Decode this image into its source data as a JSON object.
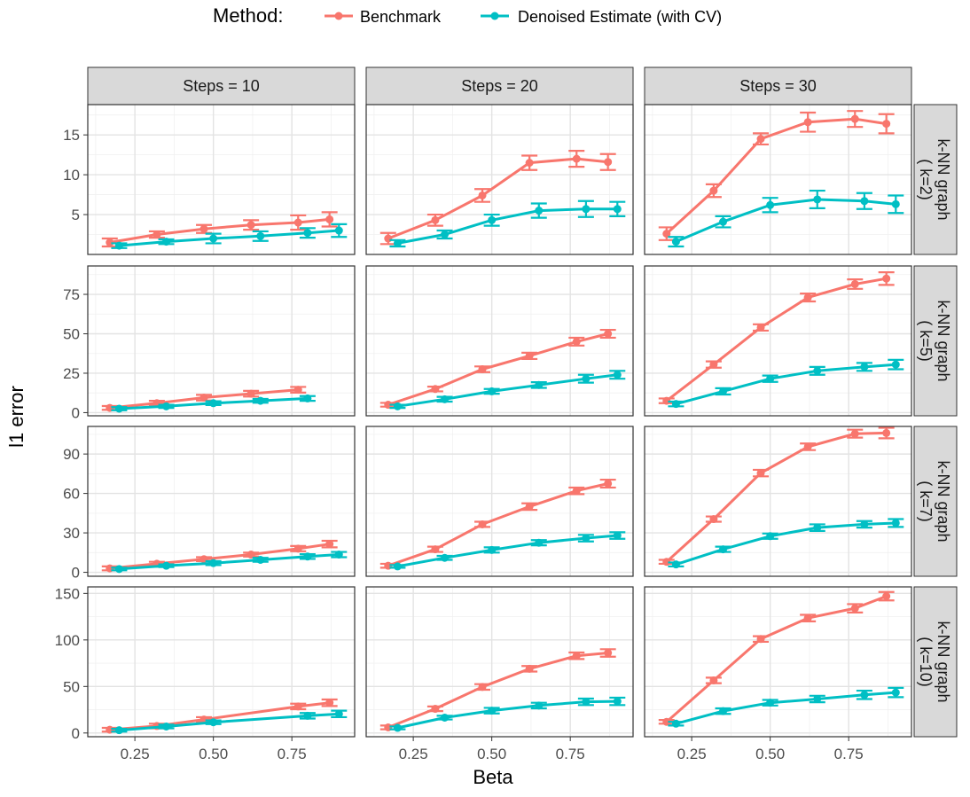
{
  "chart_data": {
    "type": "line",
    "legend": {
      "title": "Method:",
      "position": "top"
    },
    "xlabel": "Beta",
    "ylabel": "l1 error",
    "x_ticks": [
      0.25,
      0.5,
      0.75
    ],
    "x_tick_labels": [
      "0.25",
      "0.50",
      "0.75"
    ],
    "xlim": [
      0.1,
      0.95
    ],
    "columns": [
      "Steps = 10",
      "Steps = 20",
      "Steps = 30"
    ],
    "rows": [
      {
        "label": "k-NN graph\n( k=2)",
        "ylim": [
          0,
          18.8
        ],
        "ticks": [
          5,
          10,
          15
        ]
      },
      {
        "label": "k-NN graph\n( k=5)",
        "ylim": [
          -2,
          93
        ],
        "ticks": [
          0,
          25,
          50,
          75
        ]
      },
      {
        "label": "k-NN graph\n( k=7)",
        "ylim": [
          -3,
          111
        ],
        "ticks": [
          0,
          30,
          60,
          90
        ]
      },
      {
        "label": "k-NN graph\n( k=10)",
        "ylim": [
          -4,
          157
        ],
        "ticks": [
          0,
          50,
          100,
          150
        ]
      }
    ],
    "series": [
      {
        "name": "Benchmark",
        "color": "#F8766D"
      },
      {
        "name": "Denoised Estimate (with CV)",
        "color": "#00BFC4"
      }
    ],
    "panels": [
      {
        "row": 0,
        "col": 0,
        "series": [
          {
            "x": [
              0.17,
              0.32,
              0.47,
              0.62,
              0.77,
              0.87
            ],
            "y": [
              1.5,
              2.5,
              3.2,
              3.7,
              4.0,
              4.4
            ],
            "err": [
              0.5,
              0.4,
              0.5,
              0.6,
              0.9,
              0.9
            ]
          },
          {
            "x": [
              0.2,
              0.35,
              0.5,
              0.65,
              0.8,
              0.9
            ],
            "y": [
              1.1,
              1.6,
              2.0,
              2.3,
              2.7,
              3.0
            ],
            "err": [
              0.3,
              0.3,
              0.6,
              0.6,
              0.6,
              0.8
            ]
          }
        ]
      },
      {
        "row": 0,
        "col": 1,
        "series": [
          {
            "x": [
              0.17,
              0.32,
              0.47,
              0.62,
              0.77,
              0.87
            ],
            "y": [
              2.0,
              4.3,
              7.4,
              11.5,
              12.0,
              11.6
            ],
            "err": [
              0.7,
              0.7,
              0.8,
              0.9,
              1.0,
              1.0
            ]
          },
          {
            "x": [
              0.2,
              0.35,
              0.5,
              0.65,
              0.8,
              0.9
            ],
            "y": [
              1.4,
              2.5,
              4.3,
              5.5,
              5.7,
              5.7
            ],
            "err": [
              0.4,
              0.5,
              0.7,
              0.9,
              1.0,
              0.9
            ]
          }
        ]
      },
      {
        "row": 0,
        "col": 2,
        "series": [
          {
            "x": [
              0.17,
              0.32,
              0.47,
              0.62,
              0.77,
              0.87
            ],
            "y": [
              2.6,
              8.0,
              14.5,
              16.6,
              17.0,
              16.4
            ],
            "err": [
              0.8,
              0.8,
              0.7,
              1.2,
              1.0,
              1.2
            ]
          },
          {
            "x": [
              0.2,
              0.35,
              0.5,
              0.65,
              0.8,
              0.9
            ],
            "y": [
              1.6,
              4.1,
              6.2,
              6.9,
              6.7,
              6.3
            ],
            "err": [
              0.6,
              0.7,
              0.9,
              1.1,
              1.0,
              1.1
            ]
          }
        ]
      },
      {
        "row": 1,
        "col": 0,
        "series": [
          {
            "x": [
              0.17,
              0.32,
              0.47,
              0.62,
              0.77
            ],
            "y": [
              3.0,
              6.0,
              9.5,
              12.0,
              14.5
            ],
            "err": [
              1.2,
              1.5,
              1.8,
              1.8,
              1.8
            ]
          },
          {
            "x": [
              0.2,
              0.35,
              0.5,
              0.65,
              0.8
            ],
            "y": [
              2.5,
              4.0,
              6.0,
              7.5,
              9.0
            ],
            "err": [
              1.0,
              1.0,
              1.2,
              1.2,
              1.5
            ]
          }
        ]
      },
      {
        "row": 1,
        "col": 1,
        "series": [
          {
            "x": [
              0.17,
              0.32,
              0.47,
              0.62,
              0.77,
              0.87
            ],
            "y": [
              5.0,
              15.0,
              27.5,
              36.0,
              45.0,
              50.0
            ],
            "err": [
              1.2,
              1.5,
              1.8,
              2.0,
              2.5,
              2.5
            ]
          },
          {
            "x": [
              0.2,
              0.35,
              0.5,
              0.65,
              0.8,
              0.9
            ],
            "y": [
              4.0,
              8.5,
              13.5,
              17.5,
              21.5,
              24.0
            ],
            "err": [
              1.0,
              1.5,
              1.5,
              1.8,
              2.5,
              2.5
            ]
          }
        ]
      },
      {
        "row": 1,
        "col": 2,
        "series": [
          {
            "x": [
              0.17,
              0.32,
              0.47,
              0.62,
              0.77,
              0.87
            ],
            "y": [
              7.5,
              30.5,
              54.0,
              73.0,
              81.5,
              85.0
            ],
            "err": [
              1.5,
              2.0,
              2.0,
              2.5,
              3.0,
              4.0
            ]
          },
          {
            "x": [
              0.2,
              0.35,
              0.5,
              0.65,
              0.8,
              0.9
            ],
            "y": [
              5.5,
              13.5,
              21.5,
              26.5,
              29.0,
              30.5
            ],
            "err": [
              1.5,
              2.0,
              2.0,
              2.5,
              2.5,
              3.0
            ]
          }
        ]
      },
      {
        "row": 2,
        "col": 0,
        "series": [
          {
            "x": [
              0.17,
              0.32,
              0.47,
              0.62,
              0.77,
              0.87
            ],
            "y": [
              3.0,
              6.5,
              10.0,
              13.5,
              18.0,
              21.5
            ],
            "err": [
              1.5,
              1.5,
              1.5,
              1.5,
              2.0,
              2.5
            ]
          },
          {
            "x": [
              0.2,
              0.35,
              0.5,
              0.65,
              0.8,
              0.9
            ],
            "y": [
              2.5,
              5.0,
              7.0,
              9.5,
              12.0,
              13.5
            ],
            "err": [
              1.0,
              1.0,
              1.5,
              1.5,
              1.8,
              2.0
            ]
          }
        ]
      },
      {
        "row": 2,
        "col": 1,
        "series": [
          {
            "x": [
              0.17,
              0.32,
              0.47,
              0.62,
              0.77,
              0.87
            ],
            "y": [
              5.0,
              17.5,
              36.5,
              50.0,
              62.0,
              67.5
            ],
            "err": [
              1.5,
              2.0,
              2.0,
              2.5,
              2.5,
              3.0
            ]
          },
          {
            "x": [
              0.2,
              0.35,
              0.5,
              0.65,
              0.8,
              0.9
            ],
            "y": [
              4.5,
              11.0,
              17.0,
              22.5,
              26.0,
              28.0
            ],
            "err": [
              1.0,
              1.5,
              2.0,
              2.0,
              2.5,
              2.5
            ]
          }
        ]
      },
      {
        "row": 2,
        "col": 2,
        "series": [
          {
            "x": [
              0.17,
              0.32,
              0.47,
              0.62,
              0.77,
              0.87
            ],
            "y": [
              8.0,
              40.5,
              75.5,
              95.5,
              105.5,
              106.0
            ],
            "err": [
              1.5,
              2.0,
              2.5,
              2.5,
              3.0,
              4.0
            ]
          },
          {
            "x": [
              0.2,
              0.35,
              0.5,
              0.65,
              0.8,
              0.9
            ],
            "y": [
              6.0,
              17.5,
              27.5,
              34.0,
              36.5,
              37.5
            ],
            "err": [
              1.5,
              2.0,
              2.0,
              2.5,
              2.5,
              3.0
            ]
          }
        ]
      },
      {
        "row": 3,
        "col": 0,
        "series": [
          {
            "x": [
              0.17,
              0.32,
              0.47,
              0.77,
              0.87
            ],
            "y": [
              3.5,
              7.5,
              14.5,
              28.5,
              32.5
            ],
            "err": [
              2.0,
              2.5,
              2.5,
              3.0,
              3.5
            ]
          },
          {
            "x": [
              0.2,
              0.35,
              0.5,
              0.8,
              0.9
            ],
            "y": [
              3.0,
              7.0,
              11.5,
              18.5,
              20.5
            ],
            "err": [
              1.5,
              2.0,
              2.0,
              3.0,
              3.5
            ]
          }
        ]
      },
      {
        "row": 3,
        "col": 1,
        "series": [
          {
            "x": [
              0.17,
              0.32,
              0.47,
              0.62,
              0.77,
              0.87
            ],
            "y": [
              6.0,
              26.0,
              49.5,
              69.0,
              83.0,
              86.0
            ],
            "err": [
              2.0,
              2.5,
              3.0,
              3.0,
              3.5,
              4.0
            ]
          },
          {
            "x": [
              0.2,
              0.35,
              0.5,
              0.65,
              0.8,
              0.9
            ],
            "y": [
              5.5,
              16.5,
              24.0,
              29.5,
              33.5,
              34.0
            ],
            "err": [
              1.5,
              2.0,
              3.0,
              3.0,
              3.5,
              4.0
            ]
          }
        ]
      },
      {
        "row": 3,
        "col": 2,
        "series": [
          {
            "x": [
              0.17,
              0.32,
              0.47,
              0.62,
              0.77,
              0.87
            ],
            "y": [
              12.0,
              56.5,
              101.0,
              123.5,
              134.0,
              147.0
            ],
            "err": [
              2.0,
              3.0,
              3.0,
              3.5,
              4.5,
              4.5
            ]
          },
          {
            "x": [
              0.2,
              0.35,
              0.5,
              0.65,
              0.8,
              0.9
            ],
            "y": [
              10.0,
              23.5,
              32.5,
              36.5,
              41.0,
              43.5
            ],
            "err": [
              2.0,
              3.0,
              3.0,
              3.5,
              4.5,
              5.0
            ]
          }
        ]
      }
    ]
  }
}
